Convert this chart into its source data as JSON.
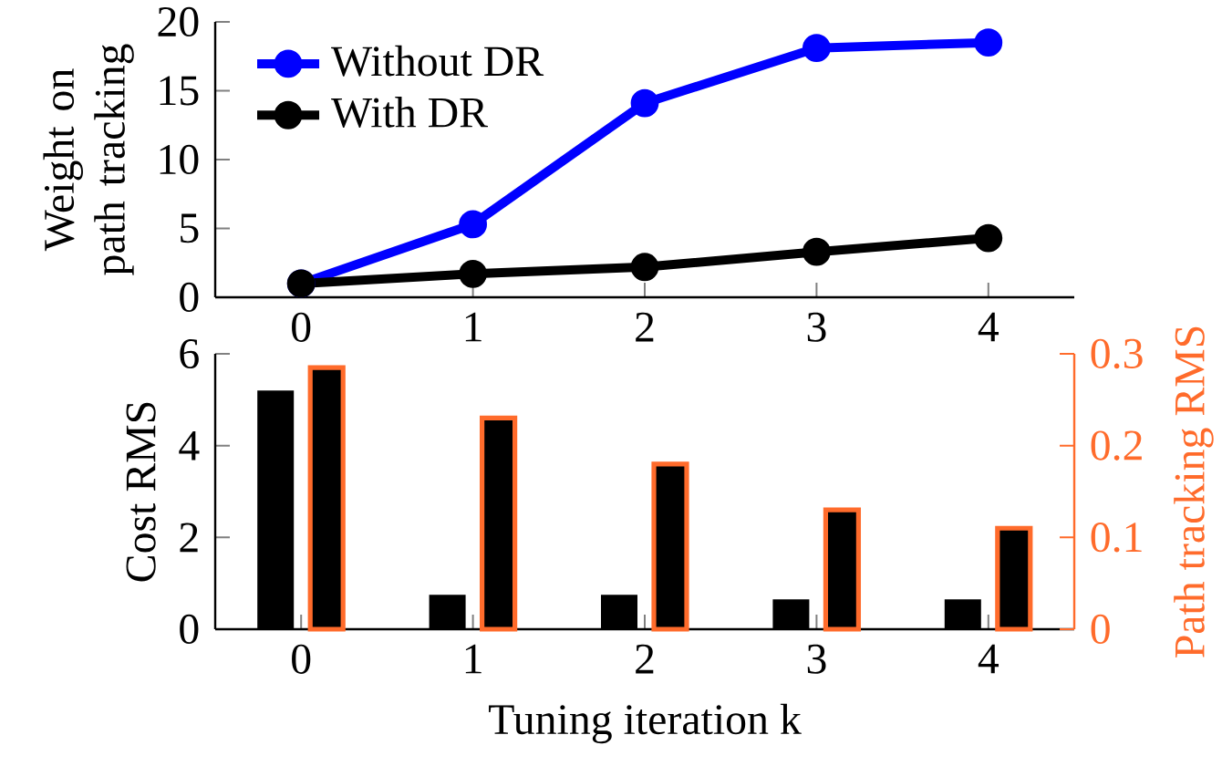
{
  "chart_data": [
    {
      "type": "line",
      "ylabel": "Weight on path tracking",
      "x": [
        0,
        1,
        2,
        3,
        4
      ],
      "xlim": [
        -0.5,
        4.5
      ],
      "xticks": [
        0,
        1,
        2,
        3,
        4
      ],
      "ylim": [
        0,
        20
      ],
      "yticks": [
        0,
        5,
        10,
        15,
        20
      ],
      "legend": "top left",
      "marker": "circle",
      "series": [
        {
          "name": "Without DR",
          "color": "#0000ff",
          "values": [
            1,
            5.3,
            14.1,
            18.1,
            18.5
          ]
        },
        {
          "name": "With DR",
          "color": "#000000",
          "values": [
            1,
            1.7,
            2.2,
            3.3,
            4.3
          ]
        }
      ]
    },
    {
      "type": "bar",
      "categories": [
        "0",
        "1",
        "2",
        "3",
        "4"
      ],
      "xlabel": "Tuning iteration k",
      "ylabel": "Cost RMS",
      "y2label": "Path tracking RMS",
      "ylim": [
        0,
        6
      ],
      "yticks": [
        0,
        2,
        4,
        6
      ],
      "y2lim": [
        0,
        0.3
      ],
      "y2ticks": [
        0,
        0.1,
        0.2,
        0.3
      ],
      "series": [
        {
          "color": "#000000",
          "values": [
            5.2,
            0.75,
            0.75,
            0.65,
            0.65
          ]
        },
        {
          "color": "#ff6b2b",
          "axis": "y2",
          "values": [
            0.285,
            0.23,
            0.18,
            0.13,
            0.11
          ]
        }
      ]
    }
  ]
}
